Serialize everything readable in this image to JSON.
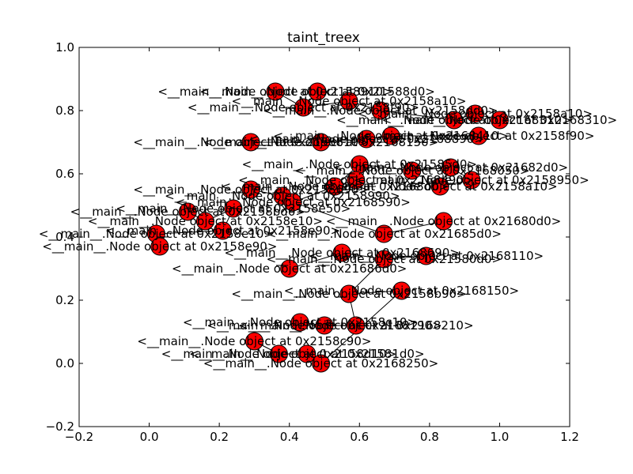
{
  "chart_data": {
    "type": "scatter",
    "title": "taint_treex",
    "xlabel": "",
    "ylabel": "",
    "xlim": [
      -0.2,
      1.2
    ],
    "ylim": [
      -0.2,
      1.0
    ],
    "x_ticks": [
      -0.2,
      0.0,
      0.2,
      0.4,
      0.6,
      0.8,
      1.0,
      1.2
    ],
    "y_ticks": [
      -0.2,
      0.0,
      0.2,
      0.4,
      0.6,
      0.8,
      1.0
    ],
    "x_tick_labels": [
      "−0.2",
      "0.0",
      "0.2",
      "0.4",
      "0.6",
      "0.8",
      "1.0",
      "1.2"
    ],
    "y_tick_labels": [
      "−0.2",
      "0.0",
      "0.2",
      "0.4",
      "0.6",
      "0.8",
      "1.0"
    ],
    "grid": false,
    "node_color": "#ff0000",
    "edge_color": "#000000",
    "nodes": [
      {
        "x": 0.36,
        "y": 0.86,
        "label": "<__main__.Node object at 0x2158910>"
      },
      {
        "x": 0.48,
        "y": 0.86,
        "label": "<__main__.Node object at 0x21588d0>"
      },
      {
        "x": 0.44,
        "y": 0.81,
        "label": "<__main__.Node object at 0x2158f90>"
      },
      {
        "x": 0.57,
        "y": 0.83,
        "label": "<__main__.Node object at 0x2158a10>"
      },
      {
        "x": 0.66,
        "y": 0.8,
        "label": "<__main__.Node object at 0x2158dd0>"
      },
      {
        "x": 0.87,
        "y": 0.77,
        "label": "<__main__.Node object at 0x2168310>"
      },
      {
        "x": 0.93,
        "y": 0.79,
        "label": "<__main__.Node object at 0x2158a10>"
      },
      {
        "x": 1.0,
        "y": 0.77,
        "label": "<__main__.Node object at 0x2168310>"
      },
      {
        "x": 0.29,
        "y": 0.7,
        "label": "<__main__.Node object at 0x2158810>"
      },
      {
        "x": 0.49,
        "y": 0.7,
        "label": "<__main__.Node object at 0x2168150>"
      },
      {
        "x": 0.62,
        "y": 0.71,
        "label": "<__main__.Node object at 0x2168890>"
      },
      {
        "x": 0.69,
        "y": 0.72,
        "label": "<__main__.Node object at 0x2168410>"
      },
      {
        "x": 0.94,
        "y": 0.72,
        "label": "<__main__.Node object at 0x2158f90>"
      },
      {
        "x": 0.6,
        "y": 0.63,
        "label": "<__main__.Node object at 0x21585d0>"
      },
      {
        "x": 0.75,
        "y": 0.61,
        "label": "<__main__.Node object at 0x2168050>"
      },
      {
        "x": 0.86,
        "y": 0.62,
        "label": "<__main__.Node object at 0x21682d0>"
      },
      {
        "x": 0.92,
        "y": 0.58,
        "label": "<__main__.Node object at 0x2158950>"
      },
      {
        "x": 0.83,
        "y": 0.56,
        "label": "<__main__.Node object at 0x2158a10>"
      },
      {
        "x": 0.59,
        "y": 0.58,
        "label": "<__main__.Node object at 0x2168490>"
      },
      {
        "x": 0.29,
        "y": 0.55,
        "label": "<__main__.Node object at 0x2158690>"
      },
      {
        "x": 0.38,
        "y": 0.53,
        "label": "<__main__.Node object at 0x2158990>"
      },
      {
        "x": 0.53,
        "y": 0.56,
        "label": "<__main__.Node object at 0x2168d0>"
      },
      {
        "x": 0.41,
        "y": 0.51,
        "label": "<__main__.Node object at 0x2168590>"
      },
      {
        "x": 0.11,
        "y": 0.48,
        "label": "<__main__.Node object at 0x2158bd0>"
      },
      {
        "x": 0.16,
        "y": 0.45,
        "label": "<__main__.Node object at 0x2158e10>"
      },
      {
        "x": 0.24,
        "y": 0.49,
        "label": "<__main__.Node object at 0x2158e50>"
      },
      {
        "x": 0.21,
        "y": 0.42,
        "label": "<__main__.Node object at 0x2158e90>"
      },
      {
        "x": 0.02,
        "y": 0.41,
        "label": "<__main__.Node object at 0x2158e10>"
      },
      {
        "x": 0.03,
        "y": 0.37,
        "label": "<__main__.Node object at 0x2158e90>"
      },
      {
        "x": 0.67,
        "y": 0.41,
        "label": "<__main__.Node object at 0x21685d0>"
      },
      {
        "x": 0.84,
        "y": 0.45,
        "label": "<__main__.Node object at 0x21680d0>"
      },
      {
        "x": 0.55,
        "y": 0.35,
        "label": "<__main__.Node object at 0x2168690>"
      },
      {
        "x": 0.67,
        "y": 0.33,
        "label": "<__main__.Node object at 0x21580d0>"
      },
      {
        "x": 0.79,
        "y": 0.34,
        "label": "<__main__.Node object at 0x2168110>"
      },
      {
        "x": 0.4,
        "y": 0.3,
        "label": "<__main__.Node object at 0x21686d0>"
      },
      {
        "x": 0.57,
        "y": 0.22,
        "label": "<__main__.Node object at 0x2158b90>"
      },
      {
        "x": 0.72,
        "y": 0.23,
        "label": "<__main__.Node object at 0x2168150>"
      },
      {
        "x": 0.43,
        "y": 0.13,
        "label": "<__main__.Node object at 0x2158c10>"
      },
      {
        "x": 0.5,
        "y": 0.12,
        "label": "<__main__.Node object at 0x2168190>"
      },
      {
        "x": 0.59,
        "y": 0.12,
        "label": "<__main__.Node object at 0x2168210>"
      },
      {
        "x": 0.3,
        "y": 0.07,
        "label": "<__main__.Node object at 0x2158c90>"
      },
      {
        "x": 0.37,
        "y": 0.03,
        "label": "<__main__.Node object at 0x2158d10>"
      },
      {
        "x": 0.45,
        "y": 0.03,
        "label": "<__main__.Node object at 0x21581d0>"
      },
      {
        "x": 0.49,
        "y": 0.0,
        "label": "<__main__.Node object at 0x2168250>"
      }
    ],
    "edges": [
      [
        0,
        2
      ],
      [
        1,
        2
      ],
      [
        2,
        3
      ],
      [
        3,
        4
      ],
      [
        4,
        5
      ],
      [
        5,
        6
      ],
      [
        6,
        7
      ],
      [
        8,
        9
      ],
      [
        9,
        10
      ],
      [
        10,
        11
      ],
      [
        11,
        12
      ],
      [
        13,
        14
      ],
      [
        14,
        15
      ],
      [
        15,
        16
      ],
      [
        16,
        17
      ],
      [
        18,
        21
      ],
      [
        19,
        20
      ],
      [
        20,
        22
      ],
      [
        22,
        21
      ],
      [
        23,
        24
      ],
      [
        24,
        25
      ],
      [
        25,
        26
      ],
      [
        26,
        27
      ],
      [
        27,
        28
      ],
      [
        29,
        30
      ],
      [
        31,
        32
      ],
      [
        32,
        33
      ],
      [
        34,
        31
      ],
      [
        35,
        36
      ],
      [
        35,
        32
      ],
      [
        37,
        38
      ],
      [
        38,
        39
      ],
      [
        40,
        41
      ],
      [
        41,
        42
      ],
      [
        42,
        43
      ],
      [
        43,
        36
      ],
      [
        39,
        35
      ],
      [
        21,
        13
      ],
      [
        22,
        29
      ]
    ]
  }
}
